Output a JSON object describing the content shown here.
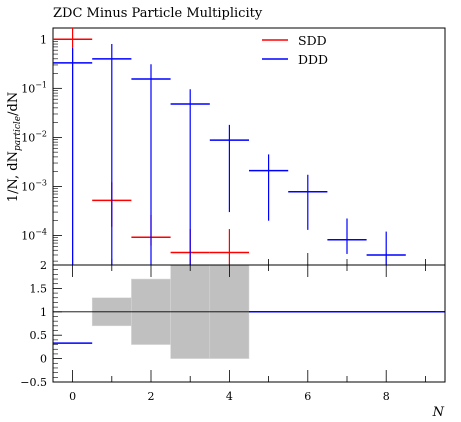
{
  "chart_data": {
    "type": "scatter",
    "title": "ZDC Minus Particle Multiplicity",
    "xlabel": "N",
    "ylabel": "1/N, dN_particle/dN",
    "ylabel_parts": {
      "main": "1/N, dN",
      "sub": "particle",
      "tail": "/dN"
    },
    "xlim": [
      -0.5,
      9.5
    ],
    "ylim": [
      2.5e-05,
      1.7
    ],
    "yscale": "log",
    "x_ticks": [
      "0",
      "2",
      "4",
      "6",
      "8"
    ],
    "y_ticks": [
      {
        "v": 1,
        "base": "1",
        "exp": ""
      },
      {
        "v": 0.1,
        "base": "10",
        "exp": "−1"
      },
      {
        "v": 0.01,
        "base": "10",
        "exp": "−2"
      },
      {
        "v": 0.001,
        "base": "10",
        "exp": "−3"
      },
      {
        "v": 0.0001,
        "base": "10",
        "exp": "−4"
      }
    ],
    "legend_position": "top-right",
    "series": [
      {
        "name": "SDD",
        "color": "#ff0000",
        "points": [
          {
            "x": 0,
            "y": 1.0,
            "yerr": [
              1.0,
              1.0
            ]
          },
          {
            "x": 1,
            "y": 0.00052,
            "yerr": [
              0.00037,
              0.0007
            ]
          },
          {
            "x": 2,
            "y": 9.2e-05,
            "yerr": [
              3e-05,
              0.00017
            ]
          },
          {
            "x": 3,
            "y": 4.5e-05,
            "yerr": [
              2e-05,
              9e-05
            ]
          },
          {
            "x": 4,
            "y": 4.5e-05,
            "yerr": [
              2e-05,
              9e-05
            ]
          }
        ]
      },
      {
        "name": "DDD",
        "color": "#0000ff",
        "points": [
          {
            "x": 0,
            "y": 0.33,
            "yerr": [
              0.33,
              0.33
            ]
          },
          {
            "x": 1,
            "y": 0.4,
            "yerr": [
              0.4,
              0.4
            ]
          },
          {
            "x": 2,
            "y": 0.155,
            "yerr": [
              0.155,
              0.155
            ]
          },
          {
            "x": 3,
            "y": 0.048,
            "yerr": [
              0.048,
              0.048
            ]
          },
          {
            "x": 4,
            "y": 0.0088,
            "yerr": [
              0.0085,
              0.0092
            ]
          },
          {
            "x": 5,
            "y": 0.0021,
            "yerr": [
              0.0019,
              0.0024
            ]
          },
          {
            "x": 6,
            "y": 0.00078,
            "yerr": [
              0.00065,
              0.00095
            ]
          },
          {
            "x": 7,
            "y": 8.2e-05,
            "yerr": [
              4e-05,
              0.00014
            ]
          },
          {
            "x": 8,
            "y": 4e-05,
            "yerr": [
              2e-05,
              8e-05
            ]
          }
        ]
      }
    ],
    "ratio_panel": {
      "ylim": [
        -0.5,
        2
      ],
      "y_ticks": [
        "2",
        "1.5",
        "1",
        "0.5",
        "0",
        "−0.5"
      ],
      "y_tick_values": [
        2,
        1.5,
        1,
        0.5,
        0,
        -0.5
      ],
      "reference": 1,
      "band_color": "#c0c0c0",
      "band": [
        {
          "x0": 0.5,
          "x1": 1.5,
          "lo": 0.7,
          "hi": 1.3
        },
        {
          "x0": 1.5,
          "x1": 2.5,
          "lo": 0.3,
          "hi": 1.7
        },
        {
          "x0": 2.5,
          "x1": 3.5,
          "lo": 0.0,
          "hi": 2.0
        },
        {
          "x0": 3.5,
          "x1": 4.5,
          "lo": 0.0,
          "hi": 2.0
        }
      ],
      "ratio_series": {
        "name": "DDD",
        "color": "#0000ff",
        "segments": [
          {
            "x0": -0.5,
            "x1": 0.5,
            "y": 0.33
          },
          {
            "x0": 4.5,
            "x1": 9.5,
            "y": 1.0
          }
        ]
      }
    }
  }
}
